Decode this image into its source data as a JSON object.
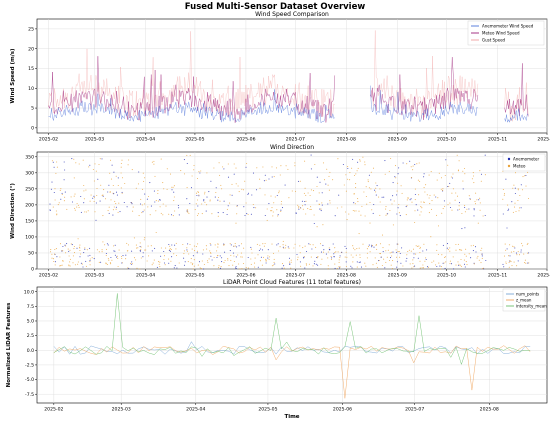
{
  "figure": {
    "title": "Fused Multi-Sensor Dataset Overview",
    "xlabel": "Time"
  },
  "chart_data": [
    {
      "type": "line",
      "title": "Wind Speed Comparison",
      "xlabel": "",
      "ylabel": "Wind Speed (m/s)",
      "x_range": [
        "2025-01-25",
        "2025-12-01"
      ],
      "ylim": [
        -1.3,
        27.5
      ],
      "x_ticks": [
        "2025-02",
        "2025-03",
        "2025-04",
        "2025-05",
        "2025-06",
        "2025-07",
        "2025-08",
        "2025-09",
        "2025-10",
        "2025-11",
        "2025-12"
      ],
      "y_ticks": [
        0,
        5,
        10,
        15,
        20,
        25
      ],
      "grid": true,
      "legend": "top-right",
      "series": [
        {
          "name": "Anemometer Wind Speed",
          "color": "#4c72d9",
          "peak": 12
        },
        {
          "name": "Meteo Wind Speed",
          "color": "#9c1f78",
          "peak": 20
        },
        {
          "name": "Gust Speed",
          "color": "#f0a0a0",
          "peak": 26
        }
      ],
      "note_gaps": "sparse gaps around 2025-07 to 2025-08 and 2025-10 to 2025-11"
    },
    {
      "type": "scatter",
      "title": "Wind Direction",
      "xlabel": "",
      "ylabel": "Wind Direction (°)",
      "x_range": [
        "2025-01-25",
        "2025-12-01"
      ],
      "ylim": [
        0,
        365
      ],
      "x_ticks": [
        "2025-02",
        "2025-03",
        "2025-04",
        "2025-05",
        "2025-06",
        "2025-07",
        "2025-08",
        "2025-09",
        "2025-10",
        "2025-11",
        "2025-12"
      ],
      "y_ticks": [
        0,
        50,
        100,
        150,
        200,
        250,
        300,
        350
      ],
      "grid": true,
      "legend": "top-right",
      "series": [
        {
          "name": "Anemometer",
          "color": "#1f2bb0"
        },
        {
          "name": "Meteo",
          "color": "#e8a23a"
        }
      ],
      "clusters_deg": [
        40,
        210,
        300
      ]
    },
    {
      "type": "line",
      "title": "LiDAR Point Cloud Features (11 total features)",
      "xlabel": "Time",
      "ylabel": "Normalized LiDAR Features",
      "x_range": [
        "2025-01-25",
        "2025-08-25"
      ],
      "ylim": [
        -9.0,
        10.8
      ],
      "x_ticks": [
        "2025-02",
        "2025-03",
        "2025-04",
        "2025-05",
        "2025-06",
        "2025-07",
        "2025-08"
      ],
      "y_ticks": [
        -7.5,
        -5.0,
        -2.5,
        0.0,
        2.5,
        5.0,
        7.5,
        10.0
      ],
      "grid": true,
      "legend": "top-right",
      "series": [
        {
          "name": "num_points",
          "color": "#7aa6d6"
        },
        {
          "name": "z_mean",
          "color": "#f0a45c"
        },
        {
          "name": "intensity_mean",
          "color": "#6cbf6c"
        }
      ],
      "spikes": [
        {
          "series": "intensity_mean",
          "date": "2025-02-27",
          "value": 9.7
        },
        {
          "series": "z_mean",
          "date": "2025-06-03",
          "value": -8.2
        },
        {
          "series": "z_mean",
          "date": "2025-07-25",
          "value": -6.8
        },
        {
          "series": "intensity_mean",
          "date": "2025-07-02",
          "value": 5.9
        },
        {
          "series": "intensity_mean",
          "date": "2025-05-05",
          "value": 5.5
        },
        {
          "series": "intensity_mean",
          "date": "2025-06-05",
          "value": 4.9
        }
      ]
    }
  ]
}
